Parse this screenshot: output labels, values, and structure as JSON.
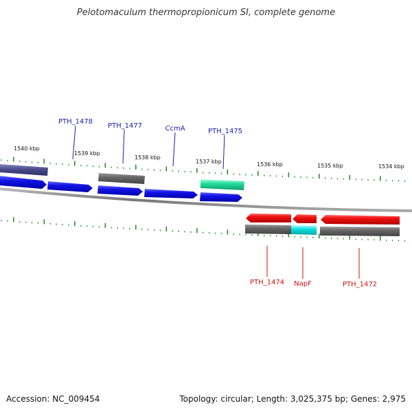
{
  "title": "Pelotomaculum thermopropionicum SI, complete genome",
  "footer": {
    "accession": "Accession: NC_009454",
    "topology": "Topology: circular; Length: 3,025,375 bp; Genes: 2,975"
  },
  "colors": {
    "forward_cds": "#1010e0",
    "reverse_cds": "#ee1111",
    "gray_feature": "#666666",
    "green_feature": "#22dd99",
    "cyan_feature": "#11dddd",
    "purple_feature": "#4a4a8a",
    "ticks": "#2b8a2b",
    "forward_label": "#1a1aaa",
    "reverse_label": "#cc1111",
    "backbone": "#888888"
  },
  "kbp_markers": [
    "1540 kbp",
    "1539 kbp",
    "1538 kbp",
    "1537 kbp",
    "1536 kbp",
    "1535 kbp",
    "1534 kbp"
  ],
  "forward_labels": [
    "PTH_1478",
    "PTH_1477",
    "CcmA",
    "PTH_1475"
  ],
  "reverse_labels": [
    "PTH_1474",
    "NapF",
    "PTH_1472"
  ]
}
